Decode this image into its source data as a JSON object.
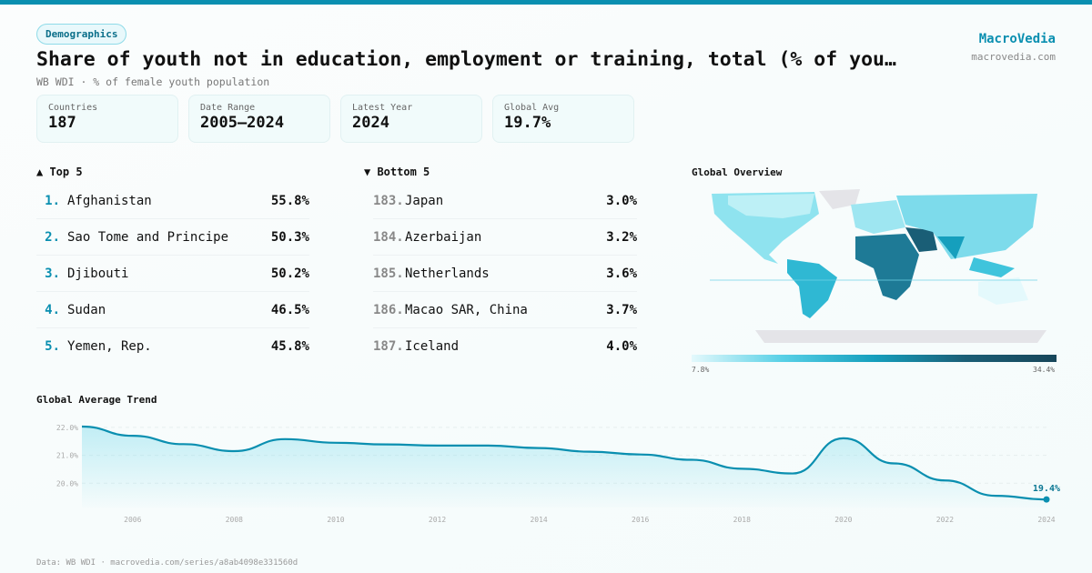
{
  "header": {
    "badge": "Demographics",
    "title": "Share of youth not in education, employment or training, total (% of you…",
    "subtitle": "WB WDI · % of female youth population",
    "brand": "MacroVedia",
    "brand_url": "macrovedia.com"
  },
  "stats": [
    {
      "label": "Countries",
      "value": "187"
    },
    {
      "label": "Date Range",
      "value": "2005–2024"
    },
    {
      "label": "Latest Year",
      "value": "2024"
    },
    {
      "label": "Global Avg",
      "value": "19.7%"
    }
  ],
  "top5": {
    "title": "▲ Top 5",
    "items": [
      {
        "rank": "1.",
        "name": "Afghanistan",
        "value": "55.8%"
      },
      {
        "rank": "2.",
        "name": "Sao Tome and Principe",
        "value": "50.3%"
      },
      {
        "rank": "3.",
        "name": "Djibouti",
        "value": "50.2%"
      },
      {
        "rank": "4.",
        "name": "Sudan",
        "value": "46.5%"
      },
      {
        "rank": "5.",
        "name": "Yemen, Rep.",
        "value": "45.8%"
      }
    ]
  },
  "bottom5": {
    "title": "▼ Bottom 5",
    "items": [
      {
        "rank": "183.",
        "name": "Japan",
        "value": "3.0%"
      },
      {
        "rank": "184.",
        "name": "Azerbaijan",
        "value": "3.2%"
      },
      {
        "rank": "185.",
        "name": "Netherlands",
        "value": "3.6%"
      },
      {
        "rank": "186.",
        "name": "Macao SAR, China",
        "value": "3.7%"
      },
      {
        "rank": "187.",
        "name": "Iceland",
        "value": "4.0%"
      }
    ]
  },
  "map": {
    "title": "Global Overview",
    "legend_min": "7.8%",
    "legend_max": "34.4%",
    "colors": [
      "#e4f9fc",
      "#57d0e6",
      "#159fbd",
      "#1a5e76"
    ]
  },
  "chart_data": {
    "type": "area",
    "title": "Global Average Trend",
    "x": [
      2005,
      2006,
      2007,
      2008,
      2009,
      2010,
      2011,
      2012,
      2013,
      2014,
      2015,
      2016,
      2017,
      2018,
      2019,
      2020,
      2021,
      2022,
      2023,
      2024
    ],
    "values": [
      22.03,
      21.7,
      21.4,
      21.15,
      21.58,
      21.45,
      21.39,
      21.35,
      21.35,
      21.26,
      21.13,
      21.03,
      20.84,
      20.52,
      20.35,
      21.61,
      20.71,
      20.1,
      19.55,
      19.42
    ],
    "yticks": [
      "20.0%",
      "21.0%",
      "22.0%"
    ],
    "ytick_values": [
      20,
      21,
      22
    ],
    "xticks": [
      2006,
      2008,
      2010,
      2012,
      2014,
      2016,
      2018,
      2020,
      2022,
      2024
    ],
    "ylim": [
      19.13,
      22.03
    ],
    "end_label": "19.4%",
    "color": "#0a8fb0",
    "grid": true
  },
  "footer": "Data: WB WDI · macrovedia.com/series/a8ab4098e331560d"
}
